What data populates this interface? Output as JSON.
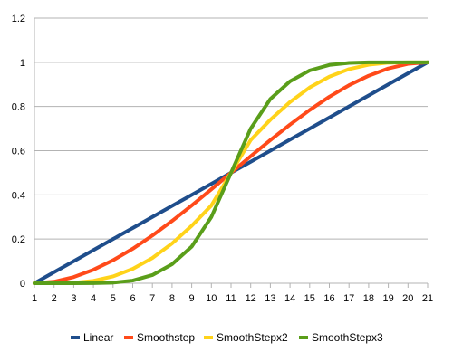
{
  "chart_data": {
    "type": "line",
    "title": "",
    "xlabel": "",
    "ylabel": "",
    "x": [
      1,
      2,
      3,
      4,
      5,
      6,
      7,
      8,
      9,
      10,
      11,
      12,
      13,
      14,
      15,
      16,
      17,
      18,
      19,
      20,
      21
    ],
    "x_ticks": [
      "1",
      "2",
      "3",
      "4",
      "5",
      "6",
      "7",
      "8",
      "9",
      "10",
      "11",
      "12",
      "13",
      "14",
      "15",
      "16",
      "17",
      "18",
      "19",
      "20",
      "21"
    ],
    "xlim": [
      1,
      21
    ],
    "ylim": [
      0,
      1.2
    ],
    "y_ticks": [
      0,
      0.2,
      0.4,
      0.6,
      0.8,
      1,
      1.2
    ],
    "y_tick_labels": [
      "0",
      "0.2",
      "0.4",
      "0.6",
      "0.8",
      "1",
      "1.2"
    ],
    "grid": "horizontal",
    "legend_position": "bottom",
    "series": [
      {
        "name": "Linear",
        "color": "#1f4e8c",
        "values": [
          0,
          0.05,
          0.1,
          0.15,
          0.2,
          0.25,
          0.3,
          0.35,
          0.4,
          0.45,
          0.5,
          0.55,
          0.6,
          0.65,
          0.7,
          0.75,
          0.8,
          0.85,
          0.9,
          0.95,
          1
        ]
      },
      {
        "name": "Smoothstep",
        "color": "#ff4a1a",
        "values": [
          0,
          0.007,
          0.028,
          0.061,
          0.104,
          0.156,
          0.216,
          0.282,
          0.352,
          0.425,
          0.5,
          0.575,
          0.648,
          0.718,
          0.784,
          0.844,
          0.896,
          0.939,
          0.972,
          0.993,
          1
        ]
      },
      {
        "name": "SmoothStepx2",
        "color": "#ffd31a",
        "values": [
          0,
          0.0001,
          0.002,
          0.011,
          0.031,
          0.065,
          0.114,
          0.18,
          0.26,
          0.352,
          0.5,
          0.648,
          0.74,
          0.82,
          0.886,
          0.935,
          0.969,
          0.989,
          0.998,
          0.9999,
          1
        ]
      },
      {
        "name": "SmoothStepx3",
        "color": "#5a9e1a",
        "values": [
          0,
          0,
          1e-05,
          0.0003,
          0.0028,
          0.012,
          0.037,
          0.086,
          0.166,
          0.3,
          0.5,
          0.7,
          0.834,
          0.914,
          0.963,
          0.988,
          0.9972,
          0.9997,
          0.99999,
          1,
          1
        ]
      }
    ]
  }
}
